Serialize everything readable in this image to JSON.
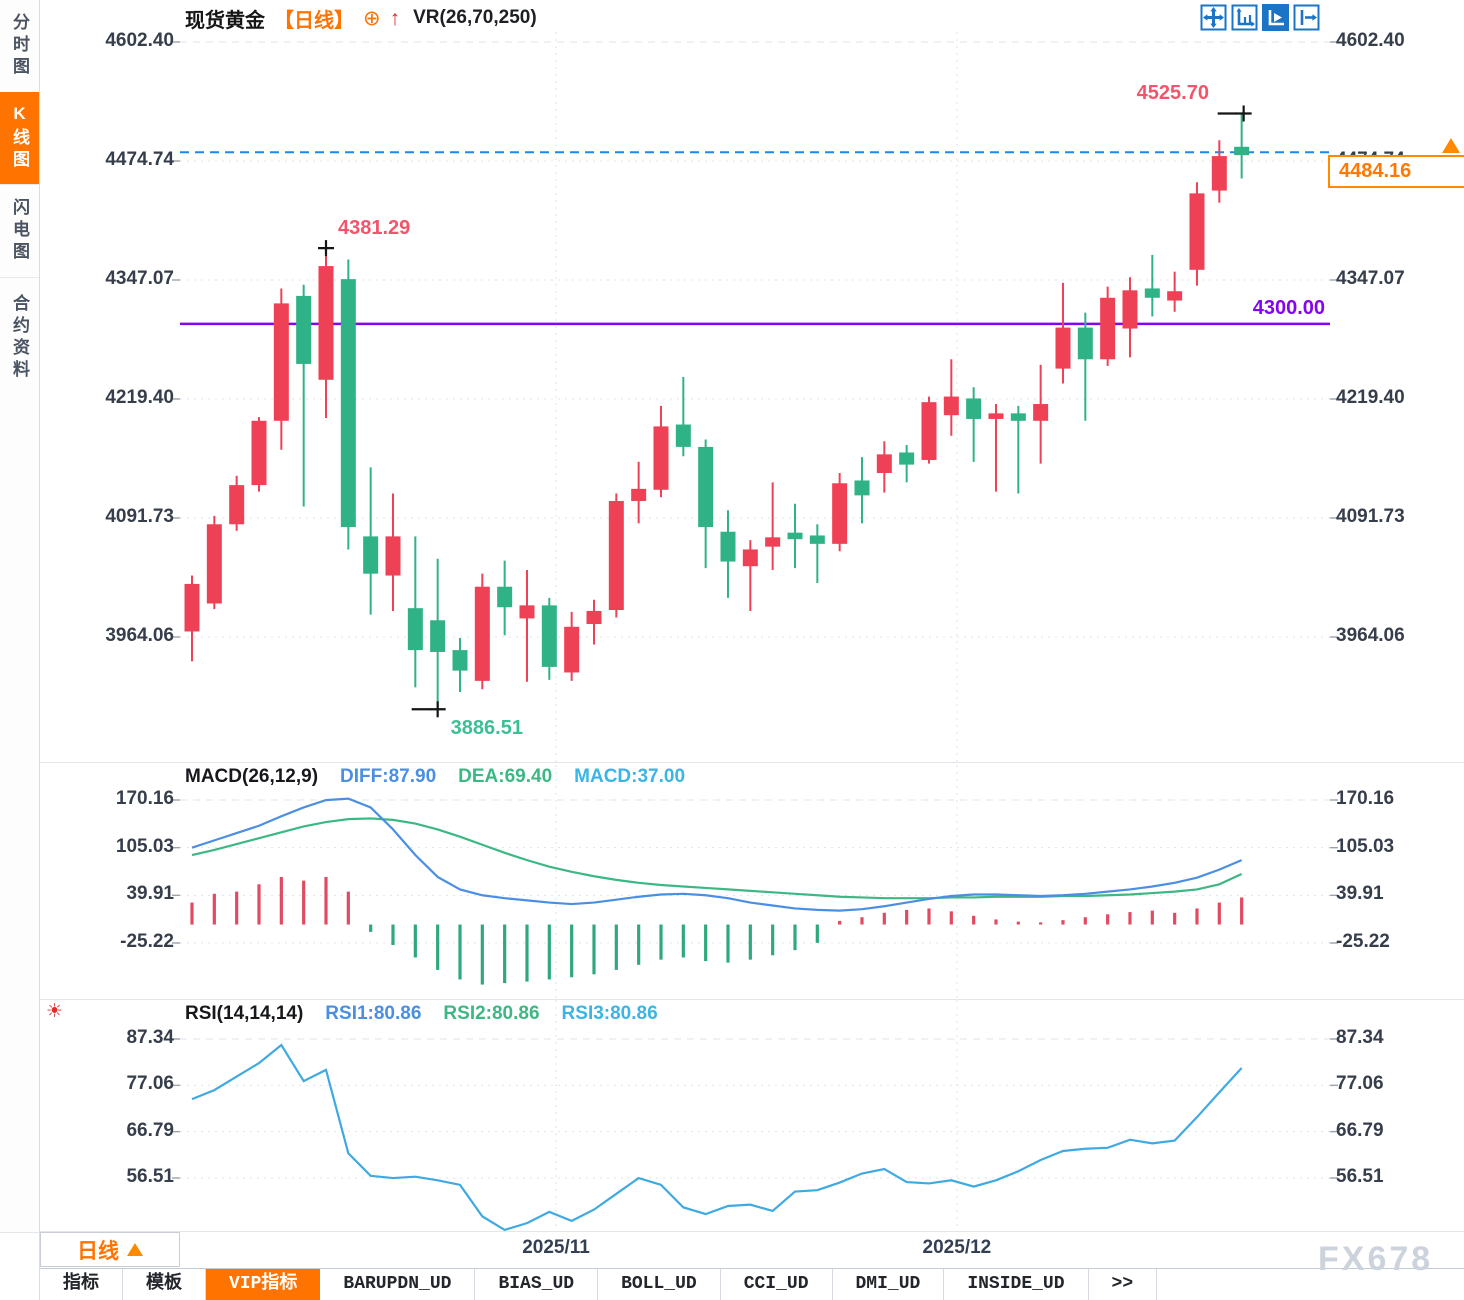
{
  "app": {
    "watermark": "FX678"
  },
  "sidebar": {
    "items": [
      {
        "label": "分时图",
        "active": false
      },
      {
        "label": "K线图",
        "active": true
      },
      {
        "label": "闪电图",
        "active": false
      },
      {
        "label": "合约资料",
        "active": false
      }
    ]
  },
  "header": {
    "symbol": "现货黄金",
    "period": "【日线】",
    "plus_icon": "⊕",
    "arrow_icon": "↑",
    "indicator": "VR(26,70,250)"
  },
  "toolbar": {
    "icons": [
      {
        "name": "pan-crosshair",
        "active": false
      },
      {
        "name": "axis-range",
        "active": false
      },
      {
        "name": "axis-play",
        "active": true
      },
      {
        "name": "export-panel",
        "active": false
      }
    ]
  },
  "xaxis": {
    "labels": [
      {
        "text": "2025/11",
        "pos": 16.3
      },
      {
        "text": "2025/12",
        "pos": 34.25
      }
    ]
  },
  "period_button": {
    "label": "日线",
    "arrow": "▲"
  },
  "bottom_tabs": [
    {
      "label": "指标",
      "active": false
    },
    {
      "label": "模板",
      "active": false
    },
    {
      "label": "VIP指标",
      "active": true
    },
    {
      "label": "BARUPDN_UD",
      "active": false
    },
    {
      "label": "BIAS_UD",
      "active": false
    },
    {
      "label": "BOLL_UD",
      "active": false
    },
    {
      "label": "CCI_UD",
      "active": false
    },
    {
      "label": "DMI_UD",
      "active": false
    },
    {
      "label": "INSIDE_UD",
      "active": false
    },
    {
      "label": ">>",
      "active": false
    }
  ],
  "chart_data": [
    {
      "type": "candlestick",
      "title": "现货黄金【日线】",
      "y_axis": [
        "4602.40",
        "4474.74",
        "4347.07",
        "4219.40",
        "4091.73",
        "3964.06"
      ],
      "colors": {
        "up": "#ef4156",
        "down": "#2fb286"
      },
      "candles": [
        [
          3970,
          4030,
          3938,
          4021
        ],
        [
          4000,
          4094,
          3994,
          4085
        ],
        [
          4085,
          4137,
          4078,
          4127
        ],
        [
          4127,
          4200,
          4120,
          4196
        ],
        [
          4196,
          4338,
          4165,
          4322
        ],
        [
          4330,
          4342,
          4104,
          4257
        ],
        [
          4240,
          4381.29,
          4199,
          4362
        ],
        [
          4348,
          4369,
          4058,
          4082
        ],
        [
          4072,
          4146,
          3988,
          4032
        ],
        [
          4030,
          4118,
          3992,
          4072
        ],
        [
          3995,
          4072,
          3910,
          3950
        ],
        [
          3982,
          4048,
          3886.51,
          3948
        ],
        [
          3950,
          3963,
          3905,
          3928
        ],
        [
          3917,
          4032,
          3908,
          4018
        ],
        [
          4018,
          4046,
          3966,
          3996
        ],
        [
          3984,
          4036,
          3916,
          3998
        ],
        [
          3998,
          4006,
          3918,
          3932
        ],
        [
          3926,
          3991,
          3917,
          3975
        ],
        [
          3978,
          4004,
          3956,
          3992
        ],
        [
          3993,
          4118,
          3985,
          4110
        ],
        [
          4110,
          4152,
          4086,
          4123
        ],
        [
          4122,
          4212,
          4114,
          4190
        ],
        [
          4192,
          4243,
          4158,
          4168
        ],
        [
          4168,
          4176,
          4038,
          4082
        ],
        [
          4077,
          4100,
          4006,
          4045
        ],
        [
          4040,
          4068,
          3992,
          4058
        ],
        [
          4061,
          4130,
          4036,
          4071
        ],
        [
          4076,
          4107,
          4038,
          4069
        ],
        [
          4073,
          4085,
          4022,
          4064
        ],
        [
          4064,
          4140,
          4056,
          4129
        ],
        [
          4132,
          4157,
          4086,
          4116
        ],
        [
          4140,
          4174,
          4119,
          4160
        ],
        [
          4162,
          4170,
          4130,
          4149
        ],
        [
          4154,
          4222,
          4150,
          4216
        ],
        [
          4202,
          4262,
          4180,
          4222
        ],
        [
          4220,
          4232,
          4152,
          4198
        ],
        [
          4198,
          4214,
          4120,
          4204
        ],
        [
          4204,
          4212,
          4118,
          4196
        ],
        [
          4196,
          4256,
          4150,
          4214
        ],
        [
          4252,
          4344,
          4236,
          4296
        ],
        [
          4296,
          4312,
          4196,
          4262
        ],
        [
          4262,
          4340,
          4255,
          4328
        ],
        [
          4295,
          4350,
          4264,
          4336
        ],
        [
          4338,
          4374,
          4308,
          4328
        ],
        [
          4325,
          4356,
          4313,
          4335
        ],
        [
          4358,
          4452,
          4341,
          4440
        ],
        [
          4443,
          4497,
          4430,
          4480
        ],
        [
          4490,
          4525.7,
          4456,
          4481
        ]
      ],
      "annotations": {
        "high_label": "4381.29",
        "high_candle": 6,
        "swing_label": "4525.70",
        "swing_candle": 47,
        "low_label": "3886.51",
        "low_candle": 11,
        "hline": 4300,
        "hline_label": "4300.00",
        "hline_color": "#8405f0",
        "last_price": 4484.16,
        "last_price_label": "4484.16",
        "last_price_color": "#ff7800"
      }
    },
    {
      "type": "macd",
      "params_label": "MACD(26,12,9)",
      "y_axis": [
        "170.16",
        "105.03",
        "39.91",
        "-25.22"
      ],
      "series": [
        {
          "name": "DIFF",
          "label": "DIFF:87.90",
          "color": "#4a8fe2",
          "values": [
            105,
            115,
            125,
            135,
            148,
            160,
            170,
            172,
            160,
            130,
            95,
            65,
            48,
            40,
            36,
            33,
            30,
            28,
            30,
            34,
            38,
            41,
            42,
            40,
            36,
            30,
            26,
            22,
            20,
            19,
            21,
            25,
            30,
            35,
            39,
            41,
            41,
            40,
            39,
            40,
            42,
            45,
            48,
            52,
            57,
            64,
            75,
            88
          ]
        },
        {
          "name": "DEA",
          "label": "DEA:69.40",
          "color": "#3cb884",
          "values": [
            95,
            102,
            110,
            118,
            126,
            134,
            140,
            144,
            145,
            143,
            138,
            130,
            120,
            109,
            98,
            88,
            79,
            72,
            66,
            61,
            57,
            54,
            52,
            50,
            48,
            46,
            44,
            42,
            40,
            38,
            37,
            36,
            36,
            36,
            37,
            37,
            38,
            38,
            38,
            39,
            39,
            40,
            41,
            43,
            45,
            48,
            55,
            69
          ]
        }
      ],
      "histogram": {
        "up_color": "#e14b62",
        "down_color": "#2fa97c",
        "values": [
          30,
          42,
          45,
          55,
          65,
          60,
          65,
          45,
          -10,
          -28,
          -45,
          -62,
          -75,
          -82,
          -80,
          -78,
          -75,
          -72,
          -68,
          -62,
          -55,
          -48,
          -45,
          -50,
          -52,
          -48,
          -42,
          -35,
          -25,
          5,
          10,
          16,
          20,
          22,
          18,
          12,
          7,
          4,
          3,
          6,
          10,
          14,
          17,
          19,
          16,
          22,
          30,
          37
        ]
      }
    },
    {
      "type": "rsi",
      "params_label": "RSI(14,14,14)",
      "y_axis": [
        "87.34",
        "77.06",
        "66.79",
        "56.51"
      ],
      "series": [
        {
          "name": "RSI1",
          "label": "RSI1:80.86",
          "color": "#4a8fe2"
        },
        {
          "name": "RSI2",
          "label": "RSI2:80.86",
          "color": "#3cb884"
        },
        {
          "name": "RSI3",
          "label": "RSI3:80.86",
          "color": "#3ab5e5"
        }
      ],
      "values": [
        74,
        76,
        79,
        82,
        86,
        78,
        80.5,
        62,
        57,
        56.5,
        56.8,
        56,
        55,
        48,
        45,
        46.5,
        49,
        47,
        49.5,
        53,
        56.5,
        55,
        50,
        48.5,
        50.3,
        50.6,
        49.2,
        53.5,
        53.8,
        55.5,
        57.5,
        58.5,
        55.6,
        55.3,
        56,
        54.6,
        56,
        58,
        60.5,
        62.5,
        63,
        63.2,
        65,
        64.2,
        64.8,
        70,
        75.5,
        80.9
      ]
    }
  ]
}
